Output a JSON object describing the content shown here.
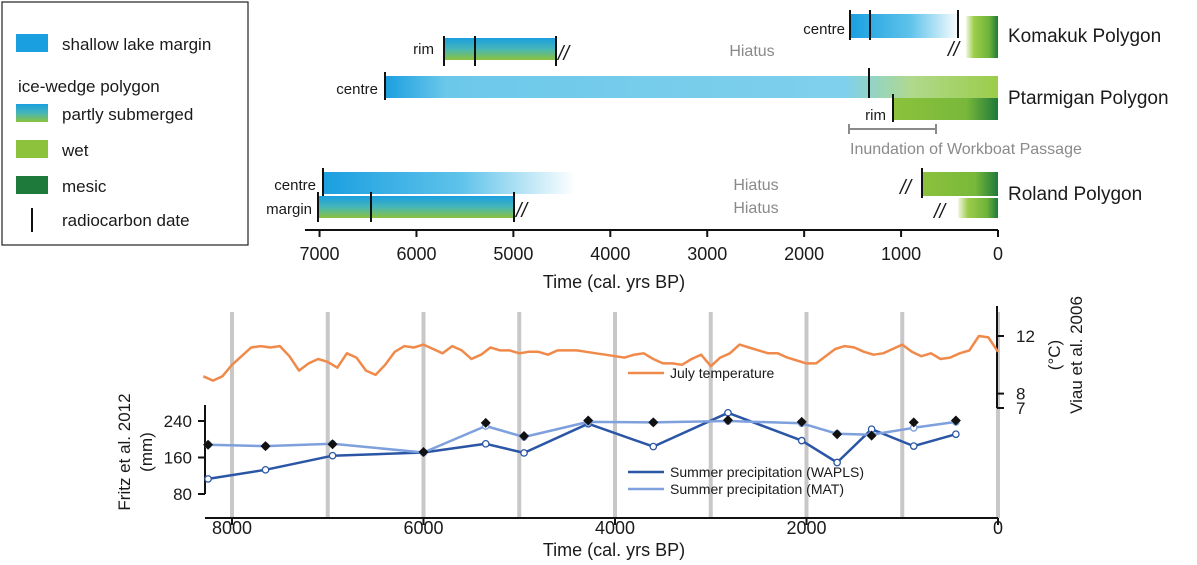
{
  "legend": {
    "items": [
      {
        "label": "shallow lake margin",
        "swatch": "lake"
      },
      {
        "label": "ice-wedge polygon",
        "swatch": "none"
      },
      {
        "label": "partly submerged",
        "swatch": "submerged"
      },
      {
        "label": "wet",
        "swatch": "wet"
      },
      {
        "label": "mesic",
        "swatch": "mesic"
      },
      {
        "label": "radiocarbon date",
        "swatch": "tick"
      }
    ]
  },
  "colors": {
    "lake": "#1a9fe0",
    "lake_light": "#7fd0ec",
    "wet": "#8cc23c",
    "mesic": "#1e7a3a",
    "temperature": "#f08a4b",
    "wapls": "#2b56a6",
    "mat": "#7ea0dc"
  },
  "chart_data": [
    {
      "type": "timeline",
      "x_axis": {
        "label": "Time (cal. yrs BP)",
        "reversed": true,
        "range": [
          7150,
          0
        ],
        "ticks": [
          7000,
          6000,
          5000,
          4000,
          3000,
          2000,
          1000,
          0
        ]
      },
      "sites": [
        {
          "name": "Komakuk Polygon",
          "rows": [
            {
              "label": "centre",
              "segments": [
                {
                  "from": 1550,
                  "to": 850,
                  "fill": "lake-fade-to-white"
                },
                {
                  "from": 430,
                  "to": 0,
                  "fill": "wet-to-mesic"
                }
              ],
              "dates": [
                1550,
                1350,
                430
              ],
              "hiatus_marks": [
                430
              ]
            }
          ]
        },
        {
          "name": "Ptarmigan Polygon",
          "rows": [
            {
              "label": "rim",
              "segments": [
                {
                  "from": 5800,
                  "to": 4600,
                  "fill": "submerged"
                }
              ],
              "dates": [
                5800,
                5450,
                4600
              ],
              "hiatus_marks": [
                4600
              ]
            },
            {
              "label": "centre",
              "segments": [
                {
                  "from": 6400,
                  "to": 0,
                  "fill": "lake-to-wet"
                }
              ],
              "dates": [
                6400,
                1350
              ]
            },
            {
              "label": "rim",
              "segments": [
                {
                  "from": 1130,
                  "to": 0,
                  "fill": "wet-to-mesic"
                }
              ],
              "dates": [
                1130
              ]
            }
          ]
        },
        {
          "name": "Roland Polygon",
          "rows": [
            {
              "label": "centre",
              "segments": [
                {
                  "from": 7050,
                  "to": 4500,
                  "fill": "lake-fade-to-white"
                },
                {
                  "from": 800,
                  "to": 0,
                  "fill": "wet-to-mesic"
                }
              ],
              "dates": [
                7050,
                800
              ],
              "hiatus_marks": [
                800
              ]
            },
            {
              "label": "margin",
              "segments": [
                {
                  "from": 7100,
                  "to": 5050,
                  "fill": "submerged"
                },
                {
                  "from": 430,
                  "to": 0,
                  "fill": "wet-to-mesic"
                }
              ],
              "dates": [
                7100,
                6550,
                5050
              ],
              "hiatus_marks": [
                5050,
                430
              ]
            }
          ]
        }
      ],
      "annotations": [
        {
          "text": "Hiatus",
          "x": 2750
        },
        {
          "text": "Hiatus",
          "x": 2750
        },
        {
          "text": "Hiatus",
          "x": 2750
        }
      ],
      "event": {
        "label": "Inundation of Workboat Passage",
        "from": 1550,
        "to": 650
      }
    },
    {
      "type": "line",
      "x_axis": {
        "label": "Time (cal. yrs BP)",
        "reversed": true,
        "range": [
          8400,
          0
        ],
        "ticks": [
          8000,
          6000,
          4000,
          2000,
          0
        ],
        "vertical_grid": [
          8000,
          7000,
          6000,
          5000,
          4000,
          3000,
          2000,
          1000,
          0
        ]
      },
      "y_left": {
        "label_lines": [
          "Fritz et al. 2012",
          "(mm)"
        ],
        "range": [
          80,
          280
        ],
        "ticks": [
          80,
          160,
          240
        ]
      },
      "y_right": {
        "label_lines": [
          "Viau et al. 2006",
          "(°C)"
        ],
        "range": [
          5.6,
          13
        ],
        "ticks": [
          7,
          8,
          12
        ]
      },
      "series": [
        {
          "name": "July temperature",
          "axis": "right",
          "color": "#f08a4b",
          "x": [
            8300,
            8200,
            8100,
            8000,
            7900,
            7800,
            7700,
            7600,
            7500,
            7400,
            7300,
            7200,
            7100,
            7000,
            6900,
            6800,
            6700,
            6600,
            6500,
            6400,
            6300,
            6200,
            6100,
            6000,
            5900,
            5800,
            5700,
            5600,
            5500,
            5400,
            5300,
            5200,
            5100,
            5000,
            4900,
            4800,
            4700,
            4600,
            4500,
            4400,
            4300,
            4200,
            4100,
            4000,
            3900,
            3800,
            3700,
            3600,
            3500,
            3400,
            3300,
            3200,
            3100,
            3000,
            2900,
            2800,
            2700,
            2600,
            2500,
            2400,
            2300,
            2200,
            2100,
            2000,
            1900,
            1800,
            1700,
            1600,
            1500,
            1400,
            1300,
            1200,
            1100,
            1000,
            900,
            800,
            700,
            600,
            500,
            400,
            300,
            200,
            100,
            0
          ],
          "values": [
            9.2,
            8.9,
            9.2,
            10.0,
            10.6,
            11.2,
            11.3,
            11.2,
            11.3,
            10.6,
            9.6,
            10.1,
            10.4,
            10.2,
            9.8,
            10.8,
            10.5,
            9.6,
            9.3,
            10.0,
            10.9,
            11.3,
            11.2,
            11.4,
            11.1,
            10.8,
            11.3,
            11.0,
            10.4,
            10.7,
            11.2,
            11.0,
            11.0,
            10.8,
            10.9,
            10.9,
            10.7,
            11.0,
            11.0,
            11.0,
            10.9,
            10.8,
            10.7,
            10.6,
            10.5,
            10.7,
            10.8,
            10.4,
            10.1,
            10.1,
            10.0,
            10.4,
            10.7,
            9.9,
            10.5,
            10.8,
            11.4,
            11.2,
            11.0,
            10.8,
            10.8,
            10.5,
            10.3,
            10.1,
            10.1,
            10.6,
            11.1,
            11.3,
            11.2,
            10.9,
            10.7,
            10.8,
            11.1,
            11.4,
            10.9,
            10.6,
            10.8,
            10.4,
            10.5,
            10.8,
            11.0,
            12.0,
            11.9,
            10.9
          ]
        },
        {
          "name": "Summer precipitation (WAPLS)",
          "axis": "left",
          "color": "#2b56a6",
          "x": [
            8250,
            7650,
            6950,
            6000,
            5350,
            4950,
            4280,
            3600,
            2820,
            2050,
            1680,
            1320,
            880,
            440
          ],
          "values": [
            113,
            133,
            164,
            171,
            190,
            170,
            234,
            184,
            258,
            197,
            149,
            222,
            185,
            211
          ]
        },
        {
          "name": "Summer precipitation (MAT)",
          "axis": "left",
          "color": "#7ea0dc",
          "x": [
            8250,
            7650,
            6950,
            6000,
            5350,
            4950,
            4280,
            3600,
            2820,
            2050,
            1680,
            1320,
            880,
            440
          ],
          "values": [
            188,
            185,
            190,
            171,
            229,
            205,
            238,
            237,
            240,
            235,
            212,
            210,
            225,
            238
          ]
        }
      ],
      "markers": {
        "shape": "diamond",
        "x": [
          8250,
          7650,
          6950,
          6000,
          5350,
          4950,
          4280,
          3600,
          2820,
          2050,
          1680,
          1320,
          880,
          440
        ],
        "values": [
          188,
          185,
          189,
          172,
          236,
          207,
          241,
          237,
          242,
          238,
          211,
          208,
          237,
          241
        ]
      }
    }
  ]
}
